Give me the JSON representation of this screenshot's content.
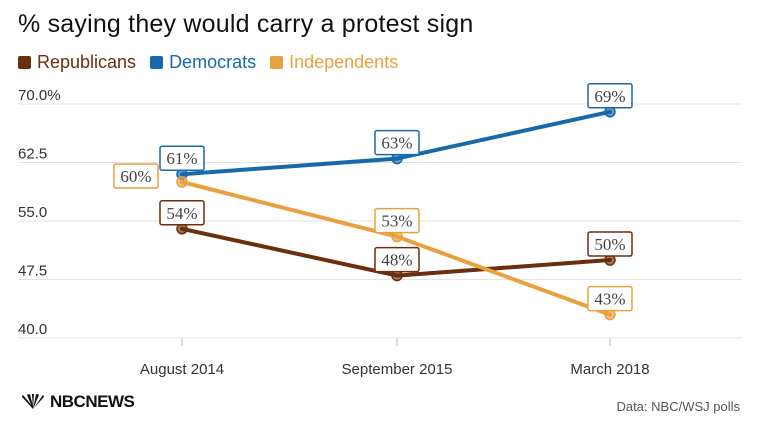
{
  "colors": {
    "republicans": "#6b2e0e",
    "democrats": "#1769aa",
    "independents": "#eaa03f",
    "grid": "#e3e3e3",
    "axis_text": "#333333"
  },
  "footer": {
    "logo_text": "NBCNEWS",
    "logo_icon": "nbc-peacock-icon",
    "source": "Data: NBC/WSJ polls"
  },
  "chart_data": {
    "type": "line",
    "title": "% saying they would carry a protest sign",
    "categories": [
      "August 2014",
      "September 2015",
      "March 2018"
    ],
    "ylim": [
      40,
      70
    ],
    "yticks": [
      {
        "value": 70,
        "label": "70.0%"
      },
      {
        "value": 62.5,
        "label": "62.5"
      },
      {
        "value": 55,
        "label": "55.0"
      },
      {
        "value": 47.5,
        "label": "47.5"
      },
      {
        "value": 40,
        "label": "40.0"
      }
    ],
    "grid": true,
    "legend": "top-left",
    "series": [
      {
        "name": "Republicans",
        "key": "republicans",
        "values": [
          54,
          48,
          50
        ],
        "labels": [
          "54%",
          "48%",
          "50%"
        ]
      },
      {
        "name": "Democrats",
        "key": "democrats",
        "values": [
          61,
          63,
          69
        ],
        "labels": [
          "61%",
          "63%",
          "69%"
        ]
      },
      {
        "name": "Independents",
        "key": "independents",
        "values": [
          60,
          53,
          43
        ],
        "labels": [
          "60%",
          "53%",
          "43%"
        ]
      }
    ]
  }
}
